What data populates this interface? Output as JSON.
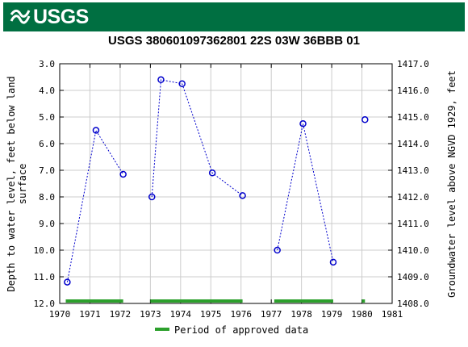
{
  "header": {
    "agency": "USGS"
  },
  "chart_data": {
    "type": "line",
    "title": "USGS 380601097362801 22S 03W 36BBB 01",
    "ylabel_left": "Depth to water level, feet below land surface",
    "ylabel_left_lines": [
      "Depth to water level, feet below land",
      "surface"
    ],
    "ylabel_right": "Groundwater level above NGVD 1929, feet",
    "xlim": [
      1970,
      1981
    ],
    "ylim_left": [
      12.0,
      3.0
    ],
    "ylim_right": [
      1408.0,
      1417.0
    ],
    "x_ticks": [
      "1970",
      "1971",
      "1972",
      "1973",
      "1974",
      "1975",
      "1976",
      "1977",
      "1978",
      "1979",
      "1980",
      "1981"
    ],
    "y_left_ticks": [
      "3.0",
      "4.0",
      "5.0",
      "6.0",
      "7.0",
      "8.0",
      "9.0",
      "10.0",
      "11.0",
      "12.0"
    ],
    "y_right_ticks": [
      "1417.0",
      "1416.0",
      "1415.0",
      "1414.0",
      "1413.0",
      "1412.0",
      "1411.0",
      "1410.0",
      "1409.0",
      "1408.0"
    ],
    "series": [
      {
        "segments": [
          [
            [
              1970.25,
              11.2
            ],
            [
              1971.2,
              5.5
            ],
            [
              1972.1,
              7.15
            ]
          ],
          [
            [
              1973.05,
              8.0
            ],
            [
              1973.35,
              3.6
            ],
            [
              1974.05,
              3.75
            ],
            [
              1975.05,
              7.1
            ],
            [
              1976.05,
              7.95
            ]
          ],
          [
            [
              1977.2,
              10.0
            ],
            [
              1978.05,
              5.25
            ],
            [
              1979.05,
              10.45
            ]
          ],
          [
            [
              1980.1,
              5.1
            ]
          ]
        ]
      }
    ],
    "approved_periods": [
      [
        1970.2,
        1972.1
      ],
      [
        1973.0,
        1976.05
      ],
      [
        1977.1,
        1979.05
      ],
      [
        1980.0,
        1980.1
      ]
    ],
    "legend": {
      "label": "Period of approved data",
      "color": "#2ca02c",
      "placement": "bottom"
    },
    "colors": {
      "points": "#0000cc",
      "line": "#0000cc",
      "approved": "#2ca02c",
      "banner": "#006f41"
    },
    "grid": true
  }
}
